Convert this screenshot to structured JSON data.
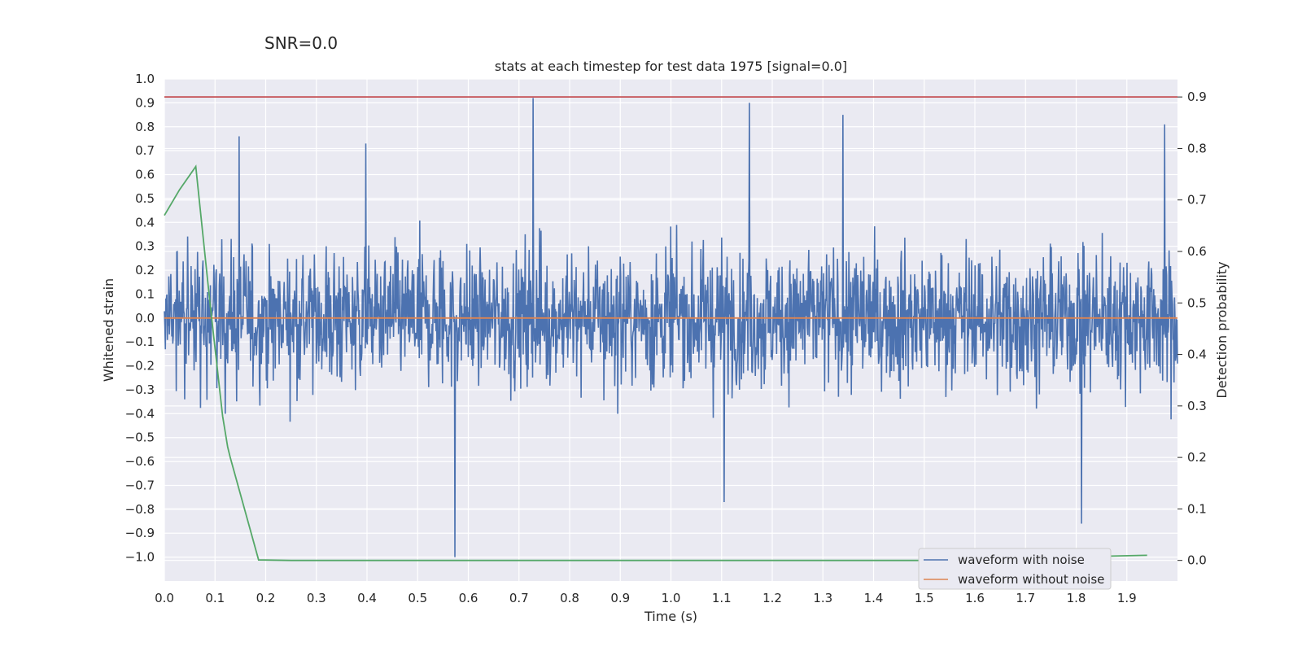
{
  "snr_label": "SNR=0.0",
  "chart_data": {
    "type": "line",
    "title": "stats at each timestep for test data 1975 [signal=0.0]",
    "xlabel": "Time (s)",
    "ylabel": "Whitened strain",
    "y2label": "Detection probability",
    "xlim": [
      0.0,
      2.0
    ],
    "ylim": [
      -1.1,
      1.0
    ],
    "y2lim": [
      -0.04,
      0.935
    ],
    "xticks": [
      "0.0",
      "0.1",
      "0.2",
      "0.3",
      "0.4",
      "0.5",
      "0.6",
      "0.7",
      "0.8",
      "0.9",
      "1.0",
      "1.1",
      "1.2",
      "1.3",
      "1.4",
      "1.5",
      "1.6",
      "1.7",
      "1.8",
      "1.9"
    ],
    "yticks": [
      "1.0",
      "0.9",
      "0.8",
      "0.7",
      "0.6",
      "0.5",
      "0.4",
      "0.3",
      "0.2",
      "0.1",
      "0.0",
      "−0.1",
      "−0.2",
      "−0.3",
      "−0.4",
      "−0.5",
      "−0.6",
      "−0.7",
      "−0.8",
      "−0.9",
      "−1.0"
    ],
    "y2ticks": [
      "0.9",
      "0.8",
      "0.7",
      "0.6",
      "0.5",
      "0.4",
      "0.3",
      "0.2",
      "0.1",
      "0.0"
    ],
    "threshold": 0.9,
    "legend_position": "lower-right",
    "grid": true,
    "series": [
      {
        "name": "waveform with noise",
        "color": "#4c72b0",
        "axis": "left",
        "description": "noise-dominated whitened strain, 2048 samples over 2 s, amplitude mostly within ±0.5",
        "n_samples": 2048,
        "peaks": [
          {
            "x": 0.148,
            "y": 0.76
          },
          {
            "x": 0.398,
            "y": 0.73
          },
          {
            "x": 0.574,
            "y": -1.0
          },
          {
            "x": 0.728,
            "y": 0.92
          },
          {
            "x": 1.105,
            "y": -0.77
          },
          {
            "x": 1.155,
            "y": 0.9
          },
          {
            "x": 1.34,
            "y": 0.85
          },
          {
            "x": 1.81,
            "y": -0.86
          },
          {
            "x": 1.975,
            "y": 0.81
          }
        ]
      },
      {
        "name": "waveform without noise",
        "color": "#dd8452",
        "axis": "left",
        "x": [
          0.0,
          2.0
        ],
        "y": [
          0.0,
          0.0
        ]
      },
      {
        "name": "Detection probability",
        "color": "#55a868",
        "axis": "right",
        "legend": false,
        "x": [
          0.0,
          0.03,
          0.062,
          0.09,
          0.115,
          0.125,
          0.13,
          0.186,
          0.25,
          0.5,
          1.0,
          1.5,
          1.94
        ],
        "y": [
          0.67,
          0.72,
          0.765,
          0.5,
          0.28,
          0.22,
          0.2,
          0.001,
          0.0,
          0.0,
          0.0,
          0.0,
          0.01
        ]
      },
      {
        "name": "Threshold",
        "color": "#c44e52",
        "axis": "right",
        "legend": false,
        "x": [
          0.0,
          2.0
        ],
        "y": [
          0.9,
          0.9
        ]
      }
    ]
  }
}
